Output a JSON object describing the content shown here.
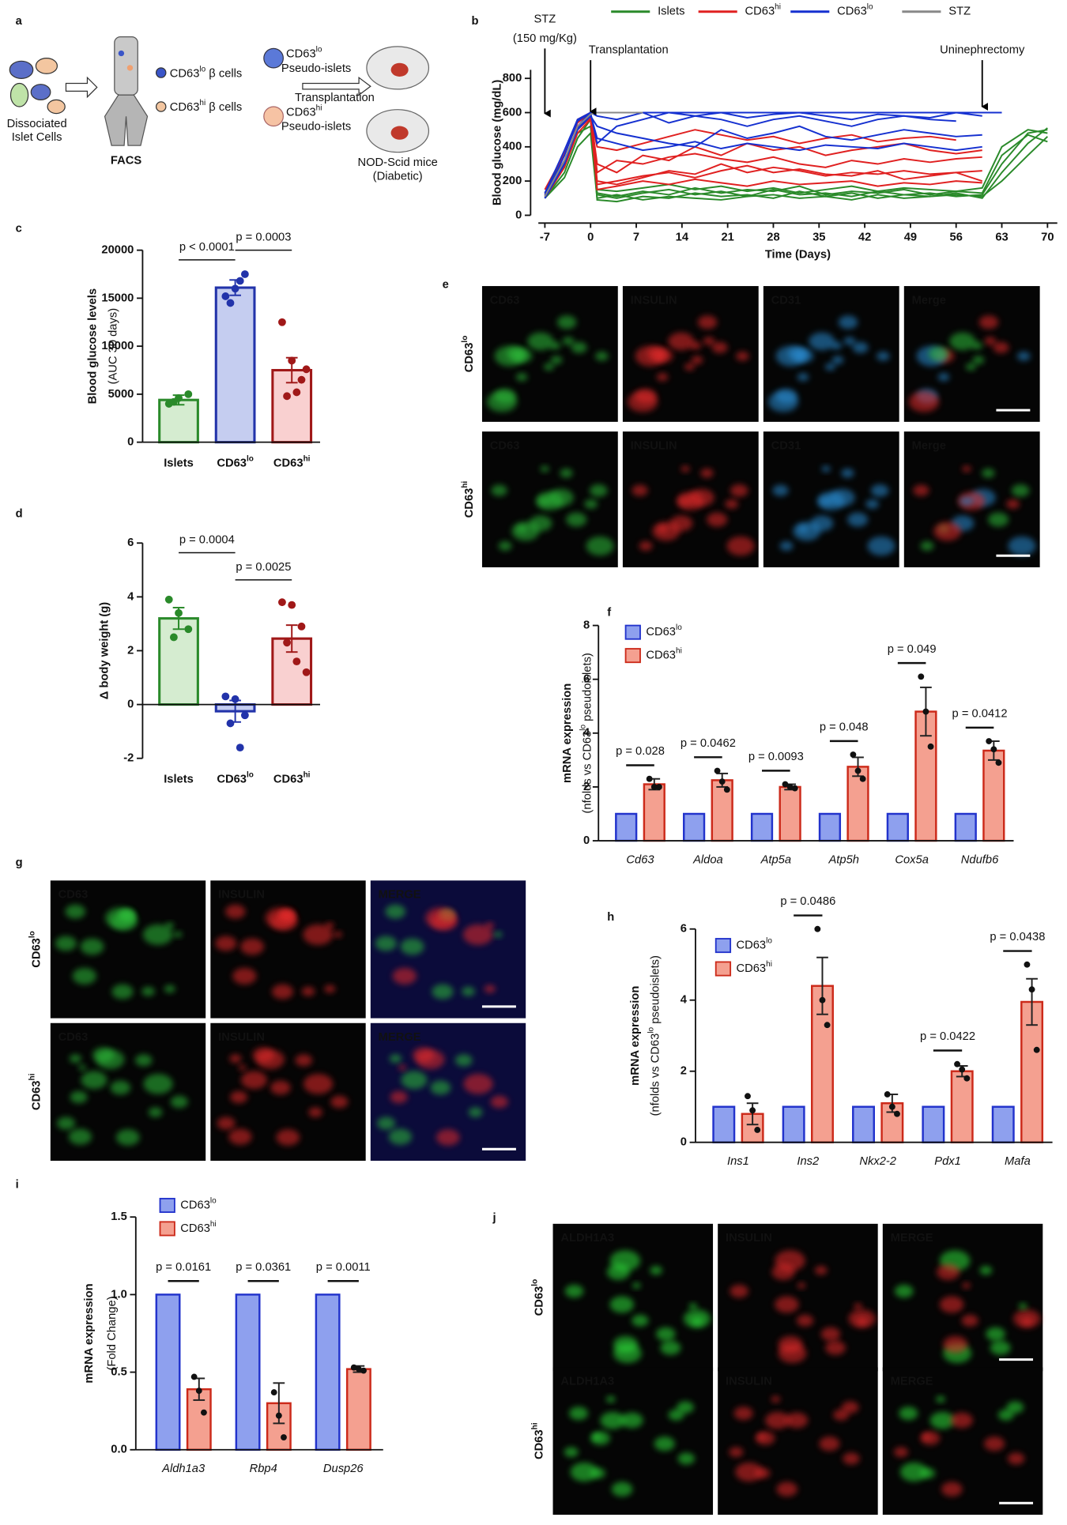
{
  "panel_labels": [
    "a",
    "b",
    "c",
    "d",
    "e",
    "f",
    "g",
    "h",
    "i",
    "j"
  ],
  "diagram": {
    "cells": [
      "Dissociated",
      "Islet Cells"
    ],
    "facs": "FACS",
    "sorted": [
      [
        "CD63",
        "lo",
        " β cells"
      ],
      [
        "CD63",
        "hi",
        " β cells"
      ]
    ],
    "pseudo": [
      {
        "name": [
          "CD63",
          "lo"
        ],
        "text": "Pseudo-islets"
      },
      {
        "name": [
          "CD63",
          "hi"
        ],
        "text": "Pseudo-islets"
      }
    ],
    "transplant": "Transplantation",
    "mice": [
      "NOD-Scid mice",
      "(Diabetic)"
    ]
  },
  "chart_data": [
    {
      "type": "line",
      "xlabel": "Time (Days)",
      "ylabel": [
        "Blood glucose (mg/dL)"
      ],
      "legend": "top",
      "x": [
        -7,
        -4,
        -2,
        0,
        1,
        4,
        8,
        12,
        16,
        20,
        24,
        28,
        32,
        36,
        40,
        44,
        48,
        52,
        56,
        60,
        63,
        67,
        70
      ],
      "xlim": [
        -8,
        71.5
      ],
      "xticks": [
        -7,
        0,
        7,
        14,
        21,
        28,
        35,
        42,
        49,
        56,
        63,
        70
      ],
      "ylim": [
        0,
        850
      ],
      "yticks": [
        0,
        200,
        400,
        600,
        800
      ],
      "annotations": [
        {
          "text": [
            "STZ",
            "(150 mg/Kg)"
          ],
          "x": -7
        },
        {
          "text": [
            "Transplantation"
          ],
          "x": 0
        },
        {
          "text": [
            "Uninephrectomy"
          ],
          "x": 60
        }
      ],
      "series": [
        {
          "name": "Islets",
          "color": "#2a8a2a",
          "lines": [
            [
              100,
              250,
              450,
              560,
              120,
              100,
              130,
              150,
              120,
              140,
              110,
              150,
              120,
              130,
              110,
              140,
              120,
              130,
              110,
              120,
              300,
              480,
              500
            ],
            [
              110,
              300,
              500,
              590,
              90,
              80,
              110,
              100,
              130,
              110,
              120,
              100,
              140,
              110,
              130,
              100,
              120,
              110,
              130,
              100,
              250,
              420,
              510
            ],
            [
              130,
              350,
              550,
              600,
              150,
              140,
              160,
              180,
              150,
              170,
              140,
              160,
              130,
              150,
              170,
              140,
              160,
              150,
              140,
              160,
              400,
              500,
              480
            ],
            [
              100,
              220,
              400,
              480,
              100,
              120,
              90,
              110,
              100,
              90,
              110,
              120,
              100,
              110,
              90,
              120,
              100,
              110,
              120,
              110,
              200,
              350,
              460
            ],
            [
              120,
              280,
              480,
              520,
              130,
              110,
              140,
              120,
              160,
              130,
              150,
              140,
              170,
              120,
              140,
              130,
              150,
              120,
              140,
              130,
              350,
              470,
              430
            ]
          ]
        },
        {
          "name": [
            "CD63",
            "hi"
          ],
          "color": "#e02020",
          "lines": [
            [
              120,
              300,
              520,
              590,
              300,
              250,
              350,
              320,
              400,
              350,
              420,
              380,
              400,
              350,
              380,
              400,
              420,
              380,
              360,
              380,
              null,
              null,
              null
            ],
            [
              110,
              350,
              560,
              600,
              200,
              180,
              220,
              260,
              240,
              300,
              250,
              280,
              260,
              230,
              250,
              240,
              260,
              240,
              250,
              260,
              null,
              null,
              null
            ],
            [
              100,
              280,
              480,
              560,
              150,
              170,
              200,
              180,
              210,
              190,
              170,
              200,
              180,
              190,
              200,
              170,
              190,
              180,
              200,
              190,
              null,
              null,
              null
            ],
            [
              130,
              320,
              500,
              580,
              400,
              380,
              420,
              460,
              500,
              470,
              440,
              460,
              420,
              450,
              470,
              430,
              450,
              460,
              440,
              null,
              null,
              null,
              null
            ],
            [
              150,
              360,
              540,
              600,
              250,
              320,
              300,
              340,
              360,
              330,
              310,
              340,
              300,
              280,
              320,
              300,
              330,
              310,
              330,
              340,
              null,
              null,
              null
            ],
            [
              120,
              300,
              500,
              570,
              180,
              200,
              230,
              250,
              220,
              260,
              290,
              250,
              270,
              240,
              230,
              260,
              210,
              230,
              250,
              200,
              null,
              null,
              null
            ]
          ]
        },
        {
          "name": [
            "CD63",
            "lo"
          ],
          "color": "#1530d0",
          "lines": [
            [
              100,
              300,
              520,
              600,
              600,
              600,
              600,
              600,
              600,
              600,
              600,
              600,
              600,
              600,
              600,
              600,
              600,
              600,
              600,
              600,
              600,
              null,
              null
            ],
            [
              110,
              350,
              550,
              600,
              420,
              520,
              560,
              600,
              580,
              560,
              520,
              560,
              580,
              550,
              520,
              560,
              580,
              560,
              550,
              null,
              null,
              null,
              null
            ],
            [
              120,
              320,
              500,
              580,
              520,
              480,
              450,
              420,
              400,
              500,
              450,
              480,
              520,
              460,
              440,
              470,
              500,
              480,
              460,
              470,
              null,
              null,
              null
            ],
            [
              130,
              380,
              560,
              600,
              580,
              560,
              600,
              540,
              580,
              600,
              570,
              590,
              600,
              580,
              560,
              590,
              580,
              570,
              600,
              580,
              null,
              null,
              null
            ],
            [
              100,
              300,
              510,
              590,
              450,
              420,
              380,
              400,
              430,
              390,
              420,
              400,
              380,
              410,
              400,
              390,
              420,
              400,
              380,
              400,
              null,
              null,
              null
            ]
          ]
        },
        {
          "name": "STZ",
          "color": "#888888",
          "lines": [
            [
              110,
              320,
              520,
              590,
              600,
              600,
              600,
              null,
              null,
              null,
              null,
              null,
              null,
              null,
              null,
              null,
              null,
              null,
              null,
              null,
              null,
              null,
              null
            ]
          ]
        }
      ]
    },
    {
      "type": "bar",
      "ylabel": [
        "Blood glucose levels",
        "(AUC 30 days)"
      ],
      "categories": [
        "Islets",
        [
          "CD63",
          "lo"
        ],
        [
          "CD63",
          "hi"
        ]
      ],
      "values": [
        4400,
        16100,
        7500
      ],
      "errors": [
        500,
        800,
        1300
      ],
      "points": [
        [
          4000,
          4600,
          5000,
          4200
        ],
        [
          15200,
          16000,
          17500,
          14500,
          16800
        ],
        [
          12500,
          8500,
          6500,
          4800,
          5200,
          7600
        ]
      ],
      "colors": [
        "#2a8a2a",
        "#2233aa",
        "#a01818"
      ],
      "fill_colors": [
        "#d5ecd0",
        "#c5cdf0",
        "#f9d0d0"
      ],
      "ylim": [
        0,
        20000
      ],
      "yticks": [
        0,
        5000,
        10000,
        15000,
        20000
      ],
      "comparisons": [
        "p < 0.0001",
        "p = 0.0003"
      ]
    },
    {
      "type": "bar",
      "ylabel": [
        "Δ body weight (g)"
      ],
      "categories": [
        "Islets",
        [
          "CD63",
          "lo"
        ],
        [
          "CD63",
          "hi"
        ]
      ],
      "values": [
        3.2,
        -0.25,
        2.45
      ],
      "errors": [
        0.4,
        0.4,
        0.5
      ],
      "points": [
        [
          3.9,
          3.4,
          2.8,
          2.5
        ],
        [
          0.3,
          0.2,
          -0.4,
          -0.7,
          -1.6
        ],
        [
          3.8,
          3.7,
          2.9,
          2.3,
          1.6,
          1.2
        ]
      ],
      "colors": [
        "#2a8a2a",
        "#2233aa",
        "#a01818"
      ],
      "fill_colors": [
        "#d5ecd0",
        "#c5cdf0",
        "#f9d0d0"
      ],
      "ylim": [
        -2,
        6
      ],
      "yticks": [
        -2,
        0,
        2,
        4,
        6
      ],
      "comparisons": [
        "p = 0.0004",
        "p = 0.0025"
      ]
    },
    {
      "type": "grouped_bar",
      "ylabel": [
        "mRNA expression",
        [
          "(nfolds vs CD63",
          "lo",
          " pseudoislets)"
        ]
      ],
      "category_style": "italic",
      "categories": [
        "Cd63",
        "Aldoa",
        "Atp5a",
        "Atp5h",
        "Cox5a",
        "Ndufb6"
      ],
      "ylim": [
        0,
        8
      ],
      "yticks": [
        0,
        2,
        4,
        6,
        8
      ],
      "p_values": [
        "p = 0.028",
        "p = 0.0462",
        "p = 0.0093",
        "p = 0.048",
        "p = 0.049",
        "p = 0.0412"
      ],
      "series": [
        {
          "name": [
            "CD63",
            "lo"
          ],
          "color": "#2233cc",
          "fill": "#8ea0ee",
          "values": [
            1,
            1,
            1,
            1,
            1,
            1
          ]
        },
        {
          "name": [
            "CD63",
            "hi"
          ],
          "color": "#cc2a1a",
          "fill": "#f4a090",
          "values": [
            2.1,
            2.25,
            2.0,
            2.75,
            4.8,
            3.35
          ],
          "errors": [
            0.2,
            0.25,
            0.1,
            0.35,
            0.9,
            0.35
          ],
          "points": [
            [
              2.3,
              2.0,
              2.0
            ],
            [
              2.6,
              2.2,
              1.9
            ],
            [
              2.1,
              2.0,
              1.95
            ],
            [
              3.2,
              2.6,
              2.3
            ],
            [
              6.1,
              4.8,
              3.5
            ],
            [
              3.7,
              3.4,
              2.9
            ]
          ]
        }
      ]
    },
    {
      "type": "grouped_bar",
      "ylabel": [
        "mRNA expression",
        [
          "(nfolds vs CD63",
          "lo",
          " pseudoislets)"
        ]
      ],
      "category_style": "italic",
      "categories": [
        "Ins1",
        "Ins2",
        "Nkx2-2",
        "Pdx1",
        "Mafa"
      ],
      "ylim": [
        0,
        6
      ],
      "yticks": [
        0,
        2,
        4,
        6
      ],
      "p_values": [
        null,
        "p = 0.0486",
        null,
        "p = 0.0422",
        "p = 0.0438"
      ],
      "series": [
        {
          "name": [
            "CD63",
            "lo"
          ],
          "color": "#2233cc",
          "fill": "#8ea0ee",
          "values": [
            1,
            1,
            1,
            1,
            1
          ]
        },
        {
          "name": [
            "CD63",
            "hi"
          ],
          "color": "#cc2a1a",
          "fill": "#f4a090",
          "values": [
            0.8,
            4.4,
            1.1,
            2.0,
            3.95
          ],
          "errors": [
            0.3,
            0.8,
            0.25,
            0.15,
            0.65
          ],
          "points": [
            [
              1.3,
              0.9,
              0.35
            ],
            [
              6.0,
              4.0,
              3.3
            ],
            [
              1.35,
              1.0,
              0.8
            ],
            [
              2.2,
              2.05,
              1.8
            ],
            [
              5.0,
              4.3,
              2.6
            ]
          ]
        }
      ]
    },
    {
      "type": "grouped_bar",
      "ylabel": [
        "mRNA expression",
        "(Fold Change)"
      ],
      "category_style": "italic",
      "categories": [
        "Aldh1a3",
        "Rbp4",
        "Dusp26"
      ],
      "ylim": [
        0,
        1.5
      ],
      "yticks": [
        {
          "value": 0,
          "label": "0.0"
        },
        0.5,
        {
          "value": 1,
          "label": "1.0"
        },
        1.5
      ],
      "p_values": [
        "p = 0.0161",
        "p = 0.0361",
        "p = 0.0011"
      ],
      "series": [
        {
          "name": [
            "CD63",
            "lo"
          ],
          "color": "#2233cc",
          "fill": "#8ea0ee",
          "values": [
            1,
            1,
            1
          ]
        },
        {
          "name": [
            "CD63",
            "hi"
          ],
          "color": "#cc2a1a",
          "fill": "#f4a090",
          "values": [
            0.39,
            0.3,
            0.52
          ],
          "errors": [
            0.07,
            0.13,
            0.02
          ],
          "points": [
            [
              0.47,
              0.38,
              0.24
            ],
            [
              0.37,
              0.22,
              0.08
            ],
            [
              0.53,
              0.52,
              0.51
            ]
          ]
        }
      ]
    }
  ],
  "micrographs": [
    {
      "rows": [
        [
          "CD63",
          "lo"
        ],
        [
          "CD63",
          "hi"
        ]
      ],
      "columns": [
        "CD63",
        "INSULIN",
        "CD31",
        "Merge"
      ],
      "label_colors": [
        "#2fbf3a",
        "#e52a2a",
        "#2b8fd6",
        "#f0c98a"
      ]
    },
    {
      "rows": [
        [
          "CD63",
          "lo"
        ],
        [
          "CD63",
          "hi"
        ]
      ],
      "columns": [
        "CD63",
        "INSULIN",
        "MERGE"
      ],
      "label_colors": [
        "#2fbf3a",
        "#e52a2a",
        "#f0a81e"
      ]
    },
    {
      "rows": [
        [
          "CD63",
          "lo"
        ],
        [
          "CD63",
          "hi"
        ]
      ],
      "columns": [
        "ALDH1A3",
        "INSULIN",
        "MERGE"
      ],
      "label_colors": [
        "#2fe03a",
        "#e52a2a",
        "#f0a81e"
      ]
    }
  ]
}
